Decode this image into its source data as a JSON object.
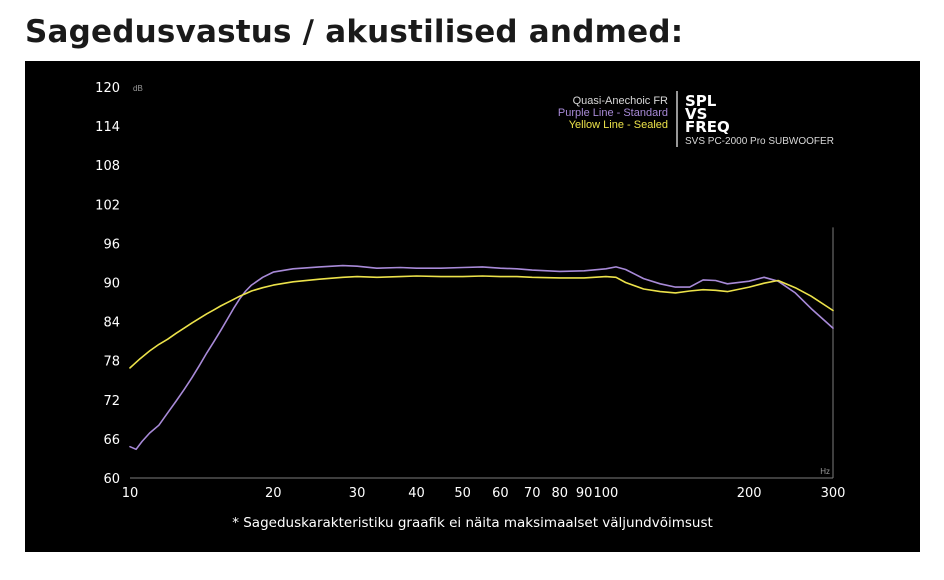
{
  "page": {
    "title": "Sagedusvastus / akustilised andmed:",
    "footnote": "* Sageduskarakteristiku graafik ei näita maksimaalset väljundvõimsust"
  },
  "colors": {
    "background": "#000000",
    "purple": "#a88ad8",
    "yellow": "#ece24a",
    "text": "#ffffff",
    "axis": "#7d7d7d"
  },
  "chart_data": {
    "type": "line",
    "legend": {
      "heading": "Quasi-Anechoic FR",
      "purple_label": "Purple Line - Standard",
      "yellow_label": "Yellow Line - Sealed",
      "placement": "top-right"
    },
    "badge": {
      "line1": "SPL",
      "line2": "VS",
      "line3": "FREQ",
      "product": "SVS PC-2000 Pro SUBWOOFER"
    },
    "xscale": "log",
    "xlim": [
      10,
      300
    ],
    "ylim": [
      60,
      120
    ],
    "x_unit": "Hz",
    "y_unit": "dB",
    "x_ticks": [
      10,
      20,
      30,
      40,
      50,
      60,
      70,
      80,
      90,
      100,
      200,
      300
    ],
    "y_ticks": [
      60,
      66,
      72,
      78,
      84,
      90,
      96,
      102,
      108,
      114,
      120
    ],
    "grid": false,
    "series": [
      {
        "name": "Standard",
        "color": "purple",
        "x": [
          10,
          10.3,
          10.6,
          11,
          11.5,
          12,
          12.5,
          13,
          13.5,
          14,
          14.5,
          15,
          15.5,
          16,
          16.5,
          17,
          17.5,
          18,
          19,
          20,
          22,
          25,
          28,
          30,
          33,
          37,
          40,
          45,
          50,
          55,
          60,
          65,
          70,
          80,
          90,
          100,
          105,
          110,
          120,
          130,
          140,
          150,
          160,
          170,
          180,
          200,
          215,
          230,
          250,
          270,
          300
        ],
        "y": [
          64.8,
          64.4,
          65.6,
          66.9,
          68.1,
          70,
          71.8,
          73.6,
          75.4,
          77.3,
          79.2,
          80.9,
          82.6,
          84.3,
          86.0,
          87.5,
          88.7,
          89.6,
          90.8,
          91.6,
          92.1,
          92.4,
          92.6,
          92.5,
          92.2,
          92.3,
          92.2,
          92.2,
          92.3,
          92.4,
          92.2,
          92.1,
          91.9,
          91.7,
          91.8,
          92.1,
          92.4,
          92.0,
          90.6,
          89.8,
          89.3,
          89.3,
          90.4,
          90.3,
          89.8,
          90.2,
          90.8,
          90.2,
          88.4,
          86.0,
          83.0
        ]
      },
      {
        "name": "Sealed",
        "color": "yellow",
        "x": [
          10,
          10.5,
          11,
          11.5,
          12,
          12.5,
          13,
          13.5,
          14,
          14.5,
          15,
          15.5,
          16,
          16.5,
          17,
          17.5,
          18,
          19,
          20,
          22,
          25,
          28,
          30,
          33,
          37,
          40,
          45,
          50,
          55,
          60,
          65,
          70,
          80,
          90,
          100,
          105,
          110,
          120,
          130,
          140,
          150,
          160,
          170,
          180,
          200,
          215,
          230,
          250,
          270,
          300
        ],
        "y": [
          76.9,
          78.3,
          79.5,
          80.5,
          81.3,
          82.2,
          83.0,
          83.8,
          84.5,
          85.2,
          85.8,
          86.4,
          86.9,
          87.4,
          87.9,
          88.3,
          88.7,
          89.2,
          89.6,
          90.1,
          90.5,
          90.8,
          90.9,
          90.8,
          90.9,
          91.0,
          90.9,
          90.9,
          91.0,
          90.9,
          90.9,
          90.8,
          90.7,
          90.7,
          90.9,
          90.8,
          90.0,
          89.0,
          88.6,
          88.4,
          88.7,
          88.9,
          88.8,
          88.6,
          89.3,
          89.9,
          90.3,
          89.2,
          87.9,
          85.7
        ]
      }
    ]
  }
}
